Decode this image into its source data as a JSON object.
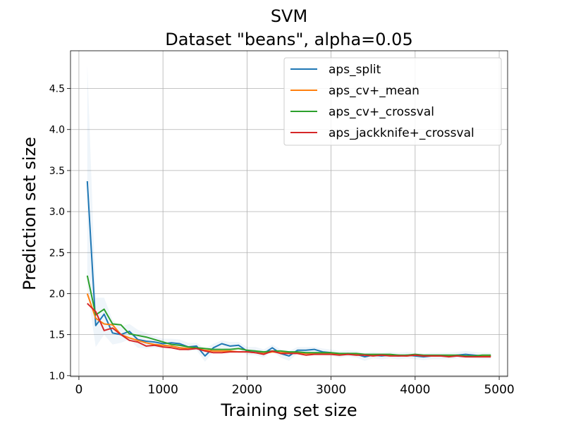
{
  "chart_data": {
    "type": "line",
    "title": "SVM",
    "subtitle": "Dataset \"beans\", alpha=0.05",
    "xlabel": "Training set size",
    "ylabel": "Prediction set size",
    "xlim": [
      -100,
      5100
    ],
    "ylim": [
      0.99,
      4.96
    ],
    "xticks": [
      0,
      1000,
      2000,
      3000,
      4000,
      5000
    ],
    "xtick_labels": [
      "0",
      "1000",
      "2000",
      "3000",
      "4000",
      "5000"
    ],
    "yticks": [
      1.0,
      1.5,
      2.0,
      2.5,
      3.0,
      3.5,
      4.0,
      4.5
    ],
    "ytick_labels": [
      "1.0",
      "1.5",
      "2.0",
      "2.5",
      "3.0",
      "3.5",
      "4.0",
      "4.5"
    ],
    "grid": true,
    "legend_position": "top-right",
    "x": [
      100,
      200,
      300,
      400,
      500,
      600,
      700,
      800,
      900,
      1000,
      1100,
      1200,
      1300,
      1400,
      1500,
      1600,
      1700,
      1800,
      1900,
      2000,
      2100,
      2200,
      2300,
      2400,
      2500,
      2600,
      2700,
      2800,
      2900,
      3000,
      3100,
      3200,
      3300,
      3400,
      3500,
      3600,
      3700,
      3800,
      3900,
      4000,
      4100,
      4200,
      4300,
      4400,
      4500,
      4600,
      4700,
      4800,
      4900
    ],
    "series": [
      {
        "name": "aps_split",
        "color": "#1f77b4",
        "values": [
          3.37,
          1.61,
          1.75,
          1.52,
          1.5,
          1.54,
          1.44,
          1.42,
          1.41,
          1.39,
          1.4,
          1.39,
          1.35,
          1.36,
          1.24,
          1.34,
          1.39,
          1.36,
          1.37,
          1.3,
          1.3,
          1.27,
          1.34,
          1.27,
          1.24,
          1.31,
          1.31,
          1.32,
          1.29,
          1.28,
          1.26,
          1.27,
          1.26,
          1.23,
          1.25,
          1.24,
          1.25,
          1.24,
          1.25,
          1.24,
          1.23,
          1.24,
          1.24,
          1.24,
          1.25,
          1.26,
          1.25,
          1.24,
          1.24
        ],
        "band_upper": [
          4.8,
          1.95,
          1.95,
          1.68,
          1.6,
          1.63,
          1.56,
          1.52,
          1.48,
          1.45,
          1.45,
          1.44,
          1.4,
          1.4,
          1.33,
          1.39,
          1.43,
          1.41,
          1.41,
          1.35,
          1.35,
          1.32,
          1.38,
          1.32,
          1.3,
          1.35,
          1.35,
          1.35,
          1.33,
          1.32,
          1.3,
          1.31,
          1.3,
          1.28,
          1.29,
          1.28,
          1.29,
          1.28,
          1.29,
          1.28,
          1.27,
          1.28,
          1.28,
          1.28,
          1.29,
          1.3,
          1.29,
          1.28,
          1.28
        ],
        "band_lower": [
          2.05,
          1.35,
          1.5,
          1.38,
          1.4,
          1.44,
          1.34,
          1.33,
          1.34,
          1.33,
          1.35,
          1.34,
          1.3,
          1.31,
          1.17,
          1.29,
          1.34,
          1.31,
          1.33,
          1.25,
          1.25,
          1.22,
          1.3,
          1.22,
          1.18,
          1.27,
          1.27,
          1.29,
          1.25,
          1.24,
          1.22,
          1.23,
          1.22,
          1.18,
          1.21,
          1.2,
          1.21,
          1.2,
          1.21,
          1.2,
          1.19,
          1.2,
          1.2,
          1.2,
          1.21,
          1.22,
          1.21,
          1.2,
          1.2
        ]
      },
      {
        "name": "aps_cv+_mean",
        "color": "#ff7f0e",
        "values": [
          2.0,
          1.7,
          1.63,
          1.62,
          1.5,
          1.46,
          1.43,
          1.4,
          1.38,
          1.37,
          1.36,
          1.34,
          1.33,
          1.33,
          1.31,
          1.3,
          1.3,
          1.3,
          1.29,
          1.29,
          1.28,
          1.27,
          1.29,
          1.28,
          1.28,
          1.28,
          1.27,
          1.27,
          1.27,
          1.27,
          1.26,
          1.26,
          1.26,
          1.25,
          1.25,
          1.25,
          1.25,
          1.25,
          1.24,
          1.25,
          1.24,
          1.24,
          1.24,
          1.24,
          1.24,
          1.24,
          1.24,
          1.24,
          1.24
        ]
      },
      {
        "name": "aps_cv+_crossval",
        "color": "#2ca02c",
        "values": [
          2.22,
          1.74,
          1.81,
          1.63,
          1.62,
          1.51,
          1.49,
          1.47,
          1.44,
          1.41,
          1.38,
          1.37,
          1.35,
          1.34,
          1.33,
          1.32,
          1.32,
          1.32,
          1.33,
          1.31,
          1.3,
          1.29,
          1.3,
          1.3,
          1.29,
          1.29,
          1.28,
          1.28,
          1.28,
          1.28,
          1.27,
          1.27,
          1.27,
          1.26,
          1.26,
          1.26,
          1.26,
          1.25,
          1.25,
          1.26,
          1.25,
          1.25,
          1.25,
          1.25,
          1.25,
          1.24,
          1.24,
          1.25,
          1.25
        ]
      },
      {
        "name": "aps_jackknife+_crossval",
        "color": "#d62728",
        "values": [
          1.88,
          1.78,
          1.55,
          1.58,
          1.5,
          1.43,
          1.41,
          1.36,
          1.37,
          1.35,
          1.34,
          1.32,
          1.32,
          1.33,
          1.3,
          1.28,
          1.28,
          1.29,
          1.29,
          1.29,
          1.28,
          1.26,
          1.3,
          1.27,
          1.27,
          1.27,
          1.25,
          1.26,
          1.26,
          1.26,
          1.25,
          1.26,
          1.25,
          1.25,
          1.24,
          1.25,
          1.24,
          1.24,
          1.24,
          1.25,
          1.24,
          1.24,
          1.24,
          1.23,
          1.24,
          1.23,
          1.23,
          1.23,
          1.23
        ]
      }
    ]
  }
}
